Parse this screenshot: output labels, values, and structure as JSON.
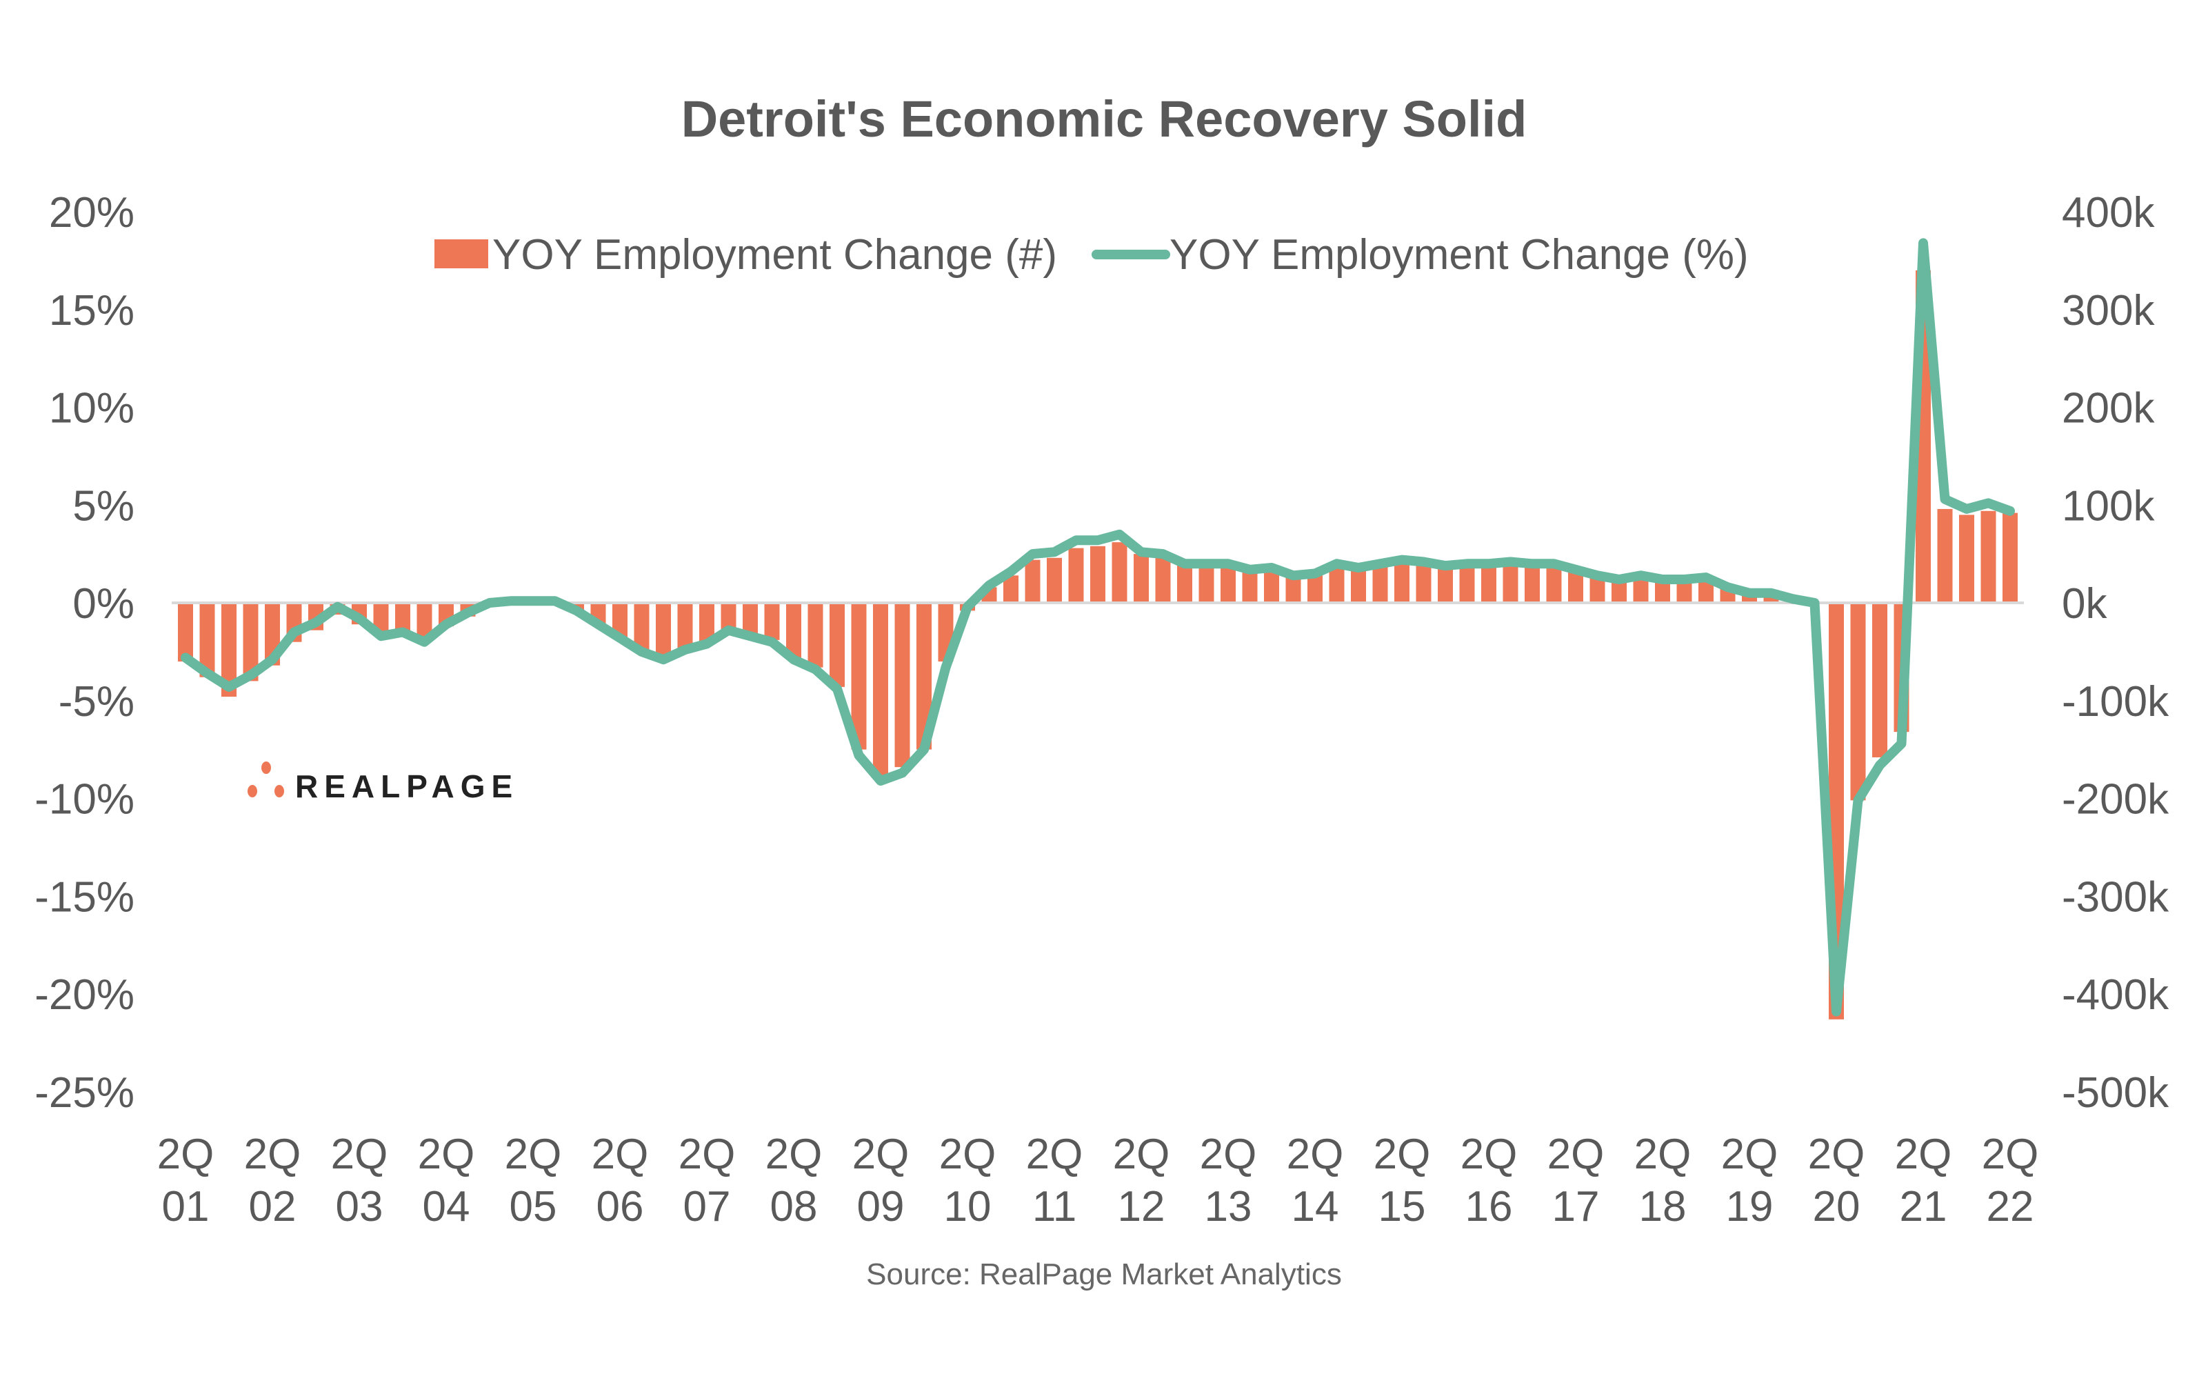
{
  "chart_data": {
    "type": "bar+line",
    "title": "Detroit's Economic Recovery Solid",
    "source": "Source: RealPage Market Analytics",
    "logo_text": "REALPAGE",
    "colors": {
      "bars": "#EE7855",
      "line": "#67B89E",
      "text": "#595959"
    },
    "legend_position": "top-center",
    "grid": false,
    "y_left": {
      "label": "",
      "range": [
        -25,
        20
      ],
      "ticks": [
        "20%",
        "15%",
        "10%",
        "5%",
        "0%",
        "-5%",
        "-10%",
        "-15%",
        "-20%",
        "-25%"
      ],
      "tick_values": [
        20,
        15,
        10,
        5,
        0,
        -5,
        -10,
        -15,
        -20,
        -25
      ]
    },
    "y_right": {
      "label": "",
      "range": [
        -500,
        400
      ],
      "ticks": [
        "400k",
        "300k",
        "200k",
        "100k",
        "0k",
        "-100k",
        "-200k",
        "-300k",
        "-400k",
        "-500k"
      ],
      "tick_values": [
        400,
        300,
        200,
        100,
        0,
        -100,
        -200,
        -300,
        -400,
        -500
      ]
    },
    "x_tick_labels": [
      [
        "2Q",
        "01"
      ],
      [
        "2Q",
        "02"
      ],
      [
        "2Q",
        "03"
      ],
      [
        "2Q",
        "04"
      ],
      [
        "2Q",
        "05"
      ],
      [
        "2Q",
        "06"
      ],
      [
        "2Q",
        "07"
      ],
      [
        "2Q",
        "08"
      ],
      [
        "2Q",
        "09"
      ],
      [
        "2Q",
        "10"
      ],
      [
        "2Q",
        "11"
      ],
      [
        "2Q",
        "12"
      ],
      [
        "2Q",
        "13"
      ],
      [
        "2Q",
        "14"
      ],
      [
        "2Q",
        "15"
      ],
      [
        "2Q",
        "16"
      ],
      [
        "2Q",
        "17"
      ],
      [
        "2Q",
        "18"
      ],
      [
        "2Q",
        "19"
      ],
      [
        "2Q",
        "20"
      ],
      [
        "2Q",
        "21"
      ],
      [
        "2Q",
        "22"
      ]
    ],
    "x_start": "2Q01",
    "x_end": "2Q22",
    "series": [
      {
        "name": "YOY Employment Change (#)",
        "type": "bar",
        "axis": "right",
        "unit": "k",
        "values": [
          -60,
          -76,
          -96,
          -80,
          -64,
          -40,
          -28,
          -12,
          -22,
          -34,
          -32,
          -36,
          -24,
          -14,
          -4,
          2,
          3,
          1,
          -8,
          -22,
          -36,
          -48,
          -56,
          -48,
          -42,
          -30,
          -34,
          -38,
          -56,
          -66,
          -86,
          -150,
          -178,
          -168,
          -150,
          -60,
          -8,
          16,
          28,
          44,
          46,
          56,
          58,
          62,
          50,
          48,
          42,
          40,
          40,
          36,
          37,
          30,
          32,
          40,
          38,
          41,
          44,
          42,
          38,
          40,
          40,
          42,
          40,
          38,
          34,
          28,
          24,
          28,
          26,
          24,
          26,
          18,
          10,
          10,
          4,
          0,
          -426,
          -202,
          -158,
          -132,
          340,
          96,
          90,
          94,
          92
        ]
      },
      {
        "name": "YOY Employment Change (%)",
        "type": "line",
        "axis": "left",
        "unit": "%",
        "values": [
          -2.8,
          -3.6,
          -4.3,
          -3.7,
          -2.9,
          -1.5,
          -1.0,
          -0.2,
          -0.8,
          -1.7,
          -1.5,
          -2.0,
          -1.1,
          -0.5,
          0.0,
          0.1,
          0.1,
          0.1,
          -0.4,
          -1.1,
          -1.8,
          -2.5,
          -2.9,
          -2.4,
          -2.1,
          -1.4,
          -1.7,
          -2.0,
          -2.9,
          -3.4,
          -4.4,
          -7.8,
          -9.1,
          -8.7,
          -7.5,
          -3.3,
          -0.2,
          0.9,
          1.6,
          2.5,
          2.6,
          3.2,
          3.2,
          3.5,
          2.6,
          2.5,
          2.0,
          2.0,
          2.0,
          1.7,
          1.8,
          1.4,
          1.5,
          2.0,
          1.8,
          2.0,
          2.2,
          2.1,
          1.9,
          2.0,
          2.0,
          2.1,
          2.0,
          2.0,
          1.7,
          1.4,
          1.2,
          1.4,
          1.2,
          1.2,
          1.3,
          0.8,
          0.5,
          0.5,
          0.2,
          0.0,
          -20.9,
          -10.1,
          -8.3,
          -7.2,
          18.4,
          5.3,
          4.8,
          5.1,
          4.7
        ]
      }
    ]
  }
}
